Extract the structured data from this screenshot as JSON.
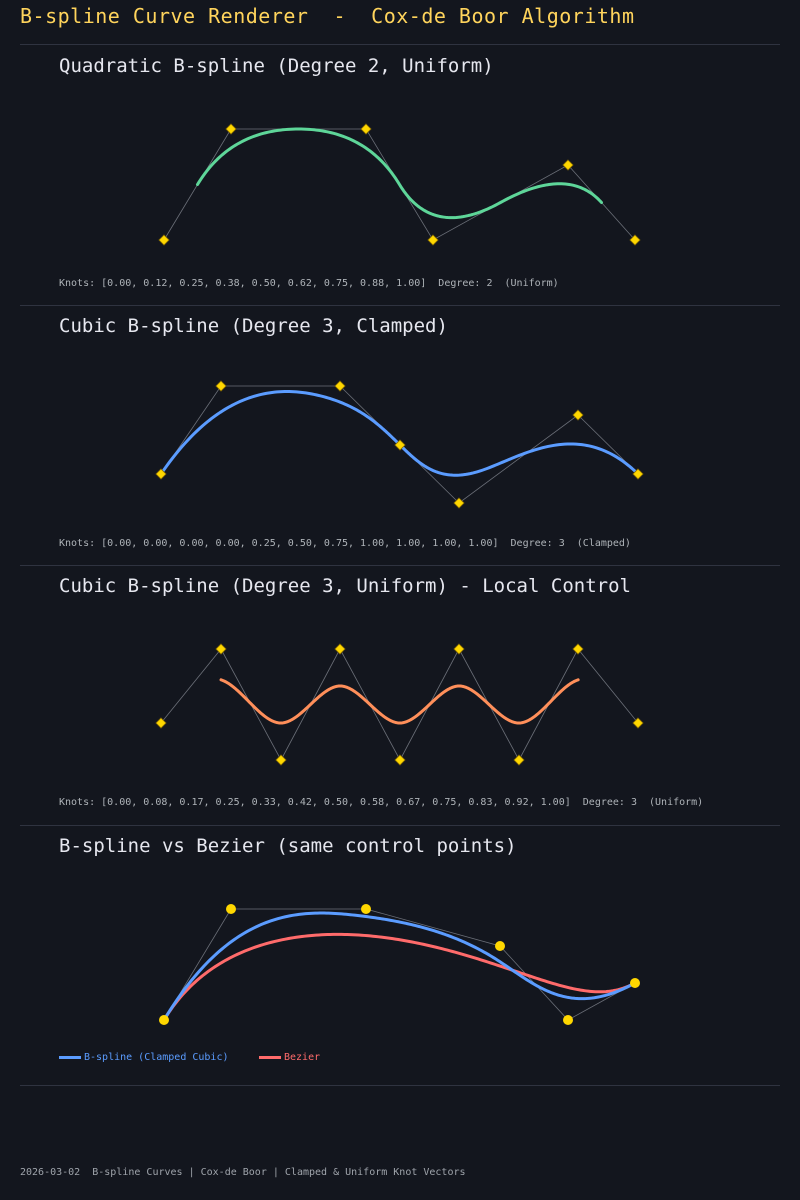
{
  "header": {
    "title": "B-spline Curve Renderer  -  Cox-de Boor Algorithm"
  },
  "colors": {
    "background": "#13161e",
    "title": "#ffd45c",
    "control_point": "#ffd700",
    "polygon": "#6b6f78",
    "quadratic_curve": "#5ed699",
    "clamped_cubic_curve": "#5b9cff",
    "local_control_curve": "#ff8f5a",
    "bezier_curve": "#ff6b6b"
  },
  "sections": [
    {
      "title": "Quadratic B-spline (Degree 2, Uniform)",
      "knot_info": "Knots: [0.00, 0.12, 0.25, 0.38, 0.50, 0.62, 0.75, 0.88, 1.00]  Degree: 2  (Uniform)"
    },
    {
      "title": "Cubic B-spline (Degree 3, Clamped)",
      "knot_info": "Knots: [0.00, 0.00, 0.00, 0.00, 0.25, 0.50, 0.75, 1.00, 1.00, 1.00, 1.00]  Degree: 3  (Clamped)"
    },
    {
      "title": "Cubic B-spline (Degree 3, Uniform) - Local Control",
      "knot_info": "Knots: [0.00, 0.08, 0.17, 0.25, 0.33, 0.42, 0.50, 0.58, 0.67, 0.75, 0.83, 0.92, 1.00]  Degree: 3  (Uniform)"
    },
    {
      "title": "B-spline vs Bezier (same control points)"
    }
  ],
  "legend": {
    "bspline": "B-spline (Clamped Cubic)",
    "bezier": "Bezier"
  },
  "footer": "2026-03-02  B-spline Curves | Cox-de Boor | Clamped & Uniform Knot Vectors"
}
